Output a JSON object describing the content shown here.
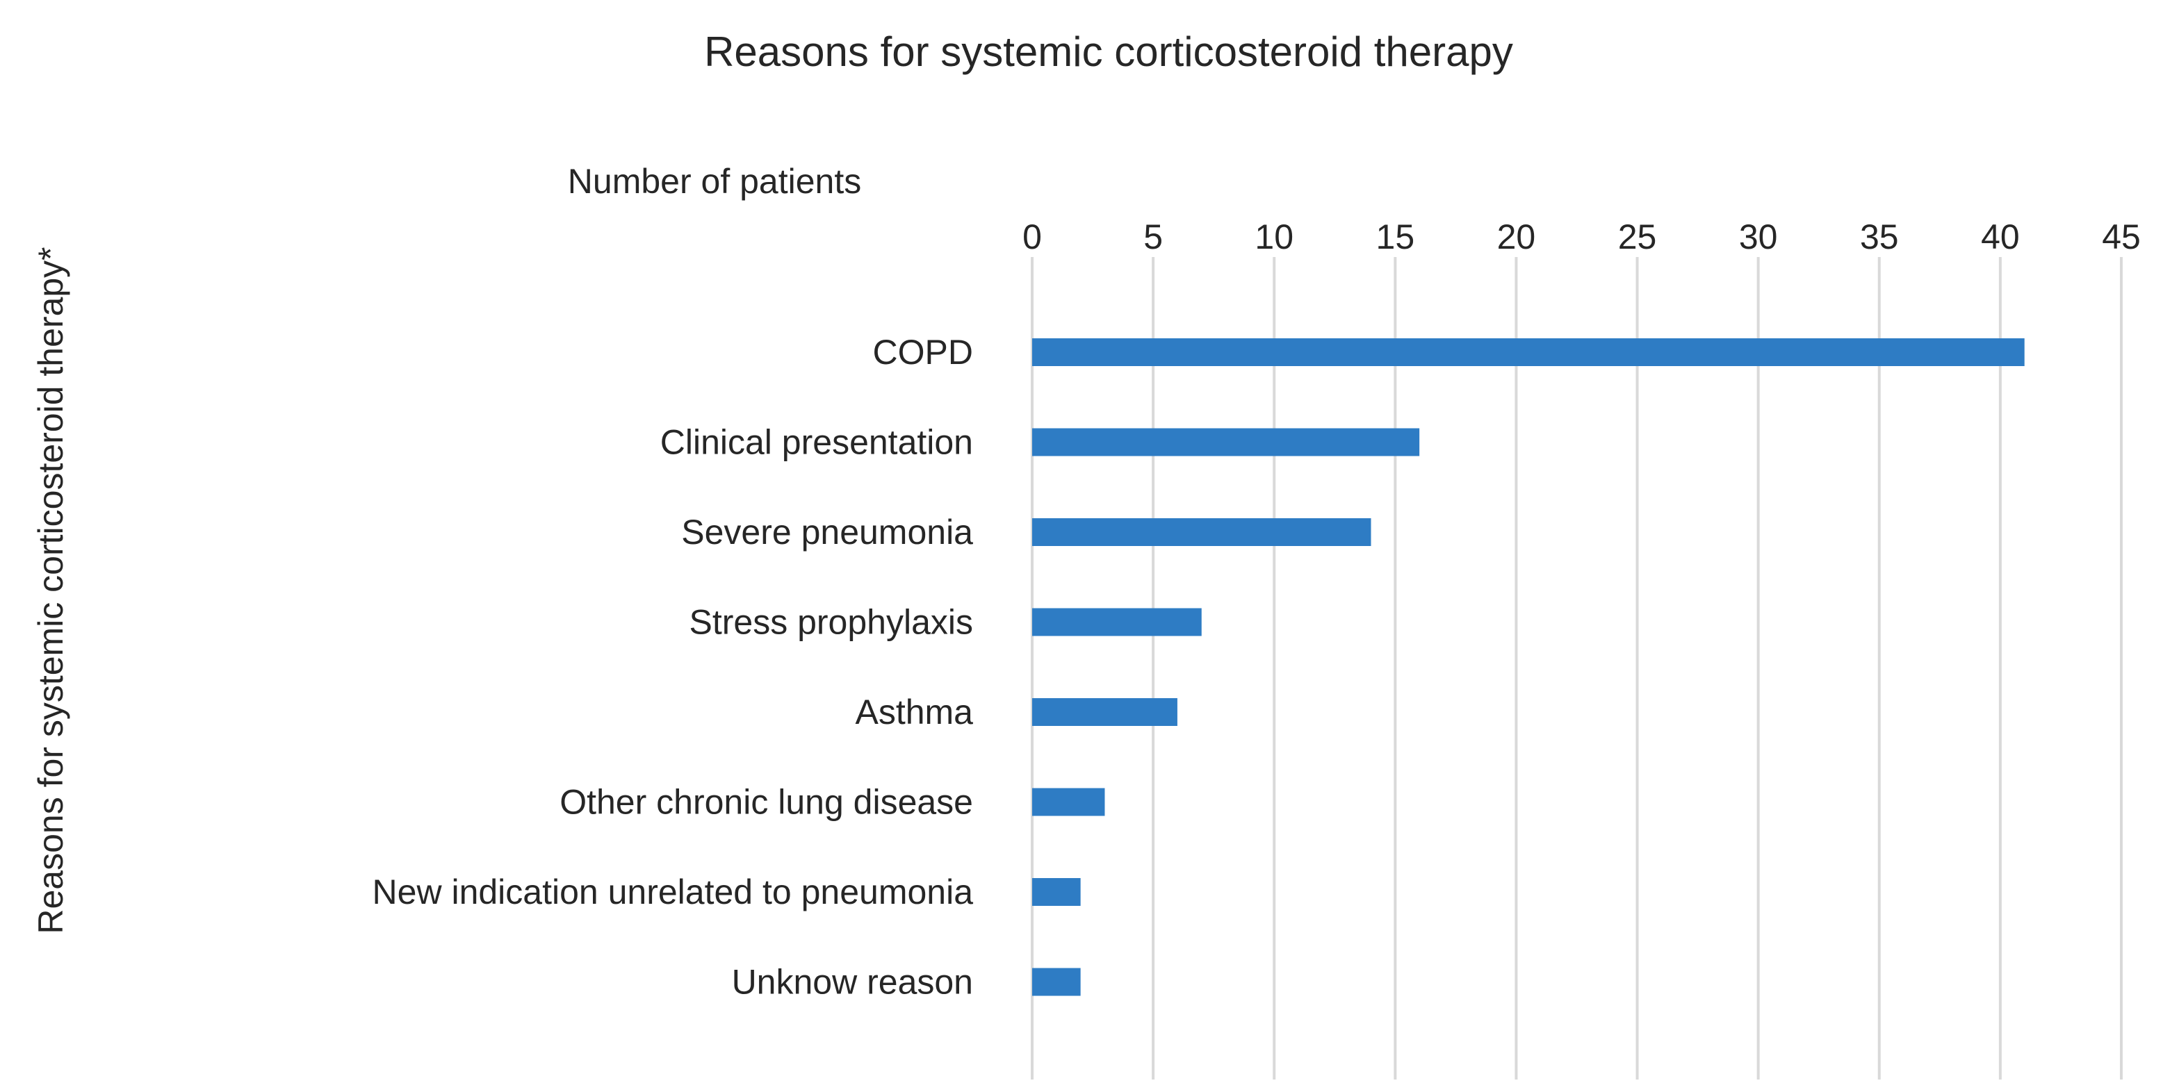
{
  "chart_data": {
    "type": "bar",
    "orientation": "horizontal",
    "title": "Reasons for systemic corticosteroid therapy",
    "xlabel": "Number of patients",
    "ylabel": "Reasons for systemic corticosteroid therapy*",
    "x_axis_position": "top",
    "xlim": [
      0,
      45
    ],
    "x_ticks": [
      0,
      5,
      10,
      15,
      20,
      25,
      30,
      35,
      40,
      45
    ],
    "grid": true,
    "categories": [
      "COPD",
      "Clinical presentation",
      "Severe pneumonia",
      "Stress prophylaxis",
      "Asthma",
      "Other chronic lung disease",
      "New indication unrelated to pneumonia",
      "Unknow reason"
    ],
    "values": [
      41,
      16,
      14,
      7,
      6,
      3,
      2,
      2
    ],
    "bar_color": "#2e7cc4",
    "grid_color": "#d9d9d9"
  }
}
